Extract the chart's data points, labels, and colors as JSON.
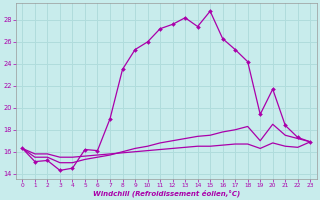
{
  "xlabel": "Windchill (Refroidissement éolien,°C)",
  "background_color": "#c8ecec",
  "grid_color": "#b0dcdc",
  "line_color": "#aa00aa",
  "xlim_min": -0.5,
  "xlim_max": 23.5,
  "ylim_min": 13.5,
  "ylim_max": 29.5,
  "yticks": [
    14,
    16,
    18,
    20,
    22,
    24,
    26,
    28
  ],
  "xticks": [
    0,
    1,
    2,
    3,
    4,
    5,
    6,
    7,
    8,
    9,
    10,
    11,
    12,
    13,
    14,
    15,
    16,
    17,
    18,
    19,
    20,
    21,
    22,
    23
  ],
  "line1_x": [
    0,
    1,
    2,
    3,
    4,
    5,
    6,
    7,
    8,
    9,
    10,
    11,
    12,
    13,
    14,
    15,
    16,
    17,
    18,
    19,
    20,
    21,
    22,
    23
  ],
  "line1_y": [
    16.3,
    15.1,
    15.2,
    14.3,
    14.5,
    16.2,
    16.1,
    19.0,
    23.5,
    25.3,
    26.0,
    27.2,
    27.6,
    28.2,
    27.4,
    28.8,
    26.3,
    25.3,
    24.2,
    19.4,
    21.7,
    18.4,
    17.3,
    16.9
  ],
  "line2_x": [
    0,
    1,
    2,
    3,
    4,
    5,
    6,
    7,
    8,
    9,
    10,
    11,
    12,
    13,
    14,
    15,
    16,
    17,
    18,
    19,
    20,
    21,
    22,
    23
  ],
  "line2_y": [
    16.3,
    15.5,
    15.5,
    15.0,
    15.0,
    15.3,
    15.5,
    15.7,
    16.0,
    16.3,
    16.5,
    16.8,
    17.0,
    17.2,
    17.4,
    17.5,
    17.8,
    18.0,
    18.3,
    17.0,
    18.5,
    17.5,
    17.2,
    16.9
  ],
  "line3_x": [
    0,
    1,
    2,
    3,
    4,
    5,
    6,
    7,
    8,
    9,
    10,
    11,
    12,
    13,
    14,
    15,
    16,
    17,
    18,
    19,
    20,
    21,
    22,
    23
  ],
  "line3_y": [
    16.3,
    15.8,
    15.8,
    15.5,
    15.5,
    15.6,
    15.7,
    15.8,
    15.9,
    16.0,
    16.1,
    16.2,
    16.3,
    16.4,
    16.5,
    16.5,
    16.6,
    16.7,
    16.7,
    16.3,
    16.8,
    16.5,
    16.4,
    16.9
  ]
}
